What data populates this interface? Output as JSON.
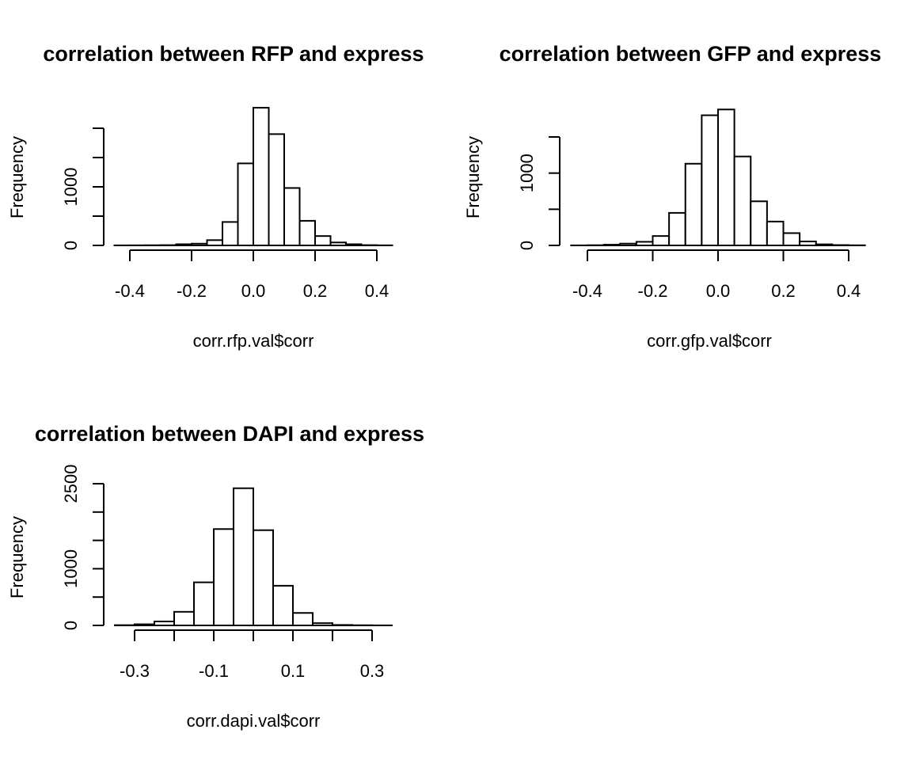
{
  "chart_data": [
    {
      "type": "bar",
      "title": "correlation between RFP and express",
      "xlabel": "corr.rfp.val$corr",
      "ylabel": "Frequency",
      "bin_width": 0.05,
      "bin_start": -0.45,
      "values": [
        1,
        2,
        3,
        5,
        20,
        30,
        90,
        400,
        1400,
        2350,
        1900,
        980,
        420,
        160,
        50,
        20,
        5,
        2
      ],
      "xticks": [
        -0.4,
        -0.2,
        0.0,
        0.2,
        0.4
      ],
      "xtick_labels": [
        "-0.4",
        "-0.2",
        "0.0",
        "0.2",
        "0.4"
      ],
      "xlim": [
        -0.45,
        0.45
      ],
      "yticks": [
        0,
        500,
        1000,
        1500,
        2000
      ],
      "ytick_labels": [
        "0",
        "",
        "1000",
        "",
        ""
      ],
      "ylim": [
        0,
        2000
      ]
    },
    {
      "type": "bar",
      "title": "correlation between GFP and express",
      "xlabel": "corr.gfp.val$corr",
      "ylabel": "Frequency",
      "bin_width": 0.05,
      "bin_start": -0.45,
      "values": [
        1,
        3,
        10,
        25,
        50,
        130,
        450,
        1130,
        1800,
        1880,
        1230,
        610,
        330,
        170,
        55,
        15,
        5,
        2
      ],
      "xticks": [
        -0.4,
        -0.2,
        0.0,
        0.2,
        0.4
      ],
      "xtick_labels": [
        "-0.4",
        "-0.2",
        "0.0",
        "0.2",
        "0.4"
      ],
      "xlim": [
        -0.4,
        0.4
      ],
      "yticks": [
        0,
        500,
        1000,
        1500
      ],
      "ytick_labels": [
        "0",
        "",
        "1000",
        ""
      ],
      "ylim": [
        0,
        1500
      ]
    },
    {
      "type": "bar",
      "title": "correlation between DAPI and express",
      "xlabel": "corr.dapi.val$corr",
      "ylabel": "Frequency",
      "bin_width": 0.05,
      "bin_start": -0.35,
      "values": [
        5,
        20,
        70,
        240,
        760,
        1700,
        2420,
        1680,
        700,
        220,
        40,
        8,
        3,
        1
      ],
      "xticks": [
        -0.3,
        -0.2,
        -0.1,
        0.0,
        0.1,
        0.2,
        0.3
      ],
      "xtick_labels": [
        "-0.3",
        "",
        "-0.1",
        "",
        "0.1",
        "",
        "0.3"
      ],
      "xlim": [
        -0.3,
        0.3
      ],
      "yticks": [
        0,
        500,
        1000,
        1500,
        2000,
        2500
      ],
      "ytick_labels": [
        "0",
        "",
        "1000",
        "",
        "",
        "2500"
      ],
      "ylim": [
        0,
        2500
      ]
    }
  ]
}
